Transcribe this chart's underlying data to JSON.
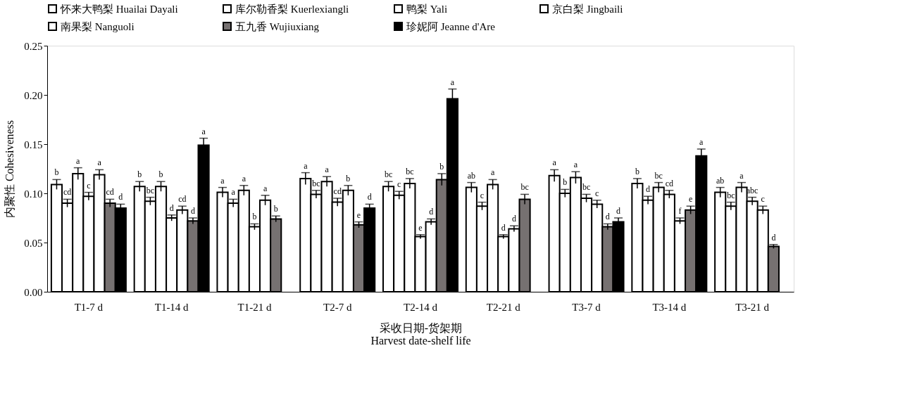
{
  "chart_data": {
    "type": "bar",
    "xlabel": "采收日期-货架期\nHarvest date-shelf life",
    "ylabel": "内聚性 Cohesiveness",
    "categories": [
      "T1-7 d",
      "T1-14 d",
      "T1-21 d",
      "T2-7 d",
      "T2-14 d",
      "T2-21 d",
      "T3-7 d",
      "T3-14 d",
      "T3-21 d"
    ],
    "ylim": [
      0,
      0.25
    ],
    "yticks": [
      {
        "value": 0,
        "label": "0.00"
      },
      {
        "value": 0.05,
        "label": "0.05"
      },
      {
        "value": 0.1,
        "label": "0.10"
      },
      {
        "value": 0.15,
        "label": "0.15"
      },
      {
        "value": 0.2,
        "label": "0.20"
      },
      {
        "value": 0.25,
        "label": "0.25"
      }
    ],
    "grid": false,
    "legend": "top",
    "series": [
      {
        "name": "怀来大鸭梨 Huailai Dayali",
        "color": "#ffffff",
        "values": [
          0.109,
          0.107,
          0.101,
          0.115,
          0.107,
          0.106,
          0.118,
          0.11,
          0.101
        ],
        "errors": [
          0.005,
          0.005,
          0.005,
          0.006,
          0.005,
          0.005,
          0.006,
          0.005,
          0.005
        ],
        "value_labels": [
          "b",
          "b",
          "a",
          "a",
          "bc",
          "ab",
          "a",
          "b",
          "ab"
        ]
      },
      {
        "name": "库尔勒香梨 Kuerlexiangli",
        "color": "#ffffff",
        "values": [
          0.09,
          0.092,
          0.09,
          0.099,
          0.098,
          0.087,
          0.1,
          0.093,
          0.087
        ],
        "errors": [
          0.004,
          0.004,
          0.004,
          0.004,
          0.004,
          0.004,
          0.004,
          0.004,
          0.004
        ],
        "value_labels": [
          "cd",
          "bc",
          "a",
          "bc",
          "c",
          "c",
          "b",
          "d",
          "bc"
        ]
      },
      {
        "name": "鸭梨 Yali",
        "color": "#ffffff",
        "values": [
          0.12,
          0.107,
          0.103,
          0.112,
          0.11,
          0.109,
          0.116,
          0.106,
          0.106
        ],
        "errors": [
          0.006,
          0.005,
          0.005,
          0.005,
          0.005,
          0.005,
          0.006,
          0.005,
          0.005
        ],
        "value_labels": [
          "a",
          "b",
          "a",
          "a",
          "bc",
          "a",
          "a",
          "bc",
          "a"
        ]
      },
      {
        "name": "京白梨 Jingbaili",
        "color": "#ffffff",
        "values": [
          0.097,
          0.075,
          0.066,
          0.091,
          0.056,
          0.056,
          0.095,
          0.099,
          0.092
        ],
        "errors": [
          0.004,
          0.003,
          0.003,
          0.004,
          0.002,
          0.002,
          0.004,
          0.004,
          0.004
        ],
        "value_labels": [
          "c",
          "d",
          "b",
          "cd",
          "e",
          "d",
          "bc",
          "cd",
          "abc"
        ]
      },
      {
        "name": "南果梨 Nanguoli",
        "color": "#ffffff",
        "values": [
          0.119,
          0.083,
          0.093,
          0.103,
          0.071,
          0.064,
          0.089,
          0.072,
          0.083
        ],
        "errors": [
          0.005,
          0.004,
          0.005,
          0.005,
          0.003,
          0.003,
          0.004,
          0.003,
          0.004
        ],
        "value_labels": [
          "a",
          "cd",
          "a",
          "b",
          "d",
          "d",
          "c",
          "f",
          "c"
        ]
      },
      {
        "name": "五九香 Wujiuxiang",
        "color": "#767171",
        "values": [
          0.09,
          0.072,
          0.074,
          0.068,
          0.114,
          0.094,
          0.066,
          0.083,
          0.046
        ],
        "errors": [
          0.004,
          0.003,
          0.003,
          0.003,
          0.006,
          0.005,
          0.003,
          0.004,
          0.002
        ],
        "value_labels": [
          "cd",
          "d",
          "b",
          "e",
          "b",
          "bc",
          "d",
          "e",
          "d"
        ]
      },
      {
        "name": "珍妮阿 Jeanne d'Are",
        "color": "#000000",
        "values": [
          0.085,
          0.149,
          null,
          0.085,
          0.196,
          null,
          0.071,
          0.138,
          null
        ],
        "errors": [
          0.004,
          0.007,
          null,
          0.004,
          0.01,
          null,
          0.004,
          0.007,
          null
        ],
        "value_labels": [
          "d",
          "a",
          null,
          "d",
          "a",
          null,
          "d",
          "a",
          null
        ]
      }
    ]
  }
}
